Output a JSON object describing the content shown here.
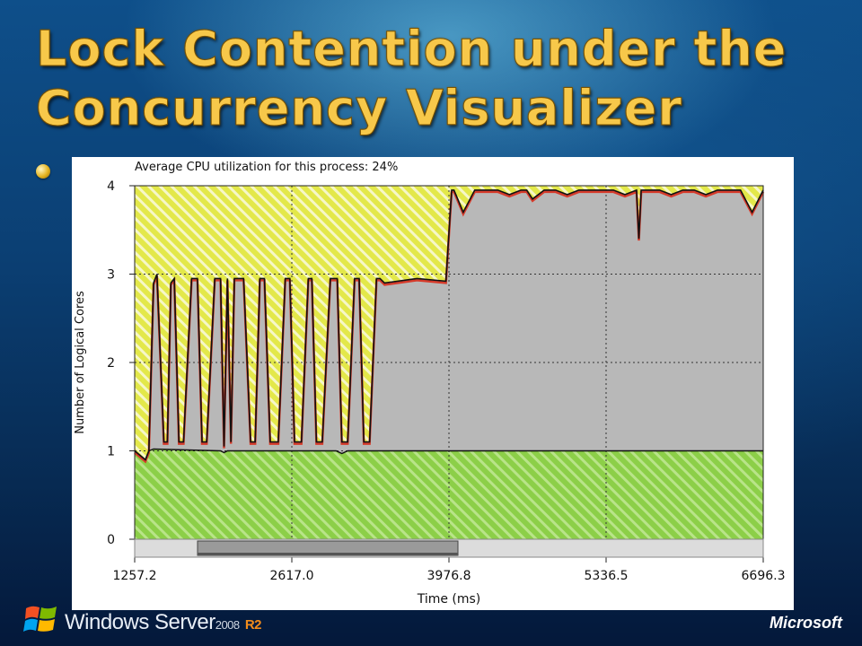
{
  "slide": {
    "title_line1": "Lock Contention under the",
    "title_line2": "Concurrency Visualizer"
  },
  "footer": {
    "brand": "Windows Server",
    "version": "2008",
    "release": "R2",
    "company": "Microsoft"
  },
  "chart_data": {
    "type": "area",
    "title": "Average CPU utilization for this process: 24%",
    "xlabel": "Time (ms)",
    "ylabel": "Number of Logical Cores",
    "xlim": [
      1257.2,
      6696.3
    ],
    "ylim": [
      0,
      4
    ],
    "x_ticks": [
      "1257.2",
      "2617.0",
      "3976.8",
      "5336.5",
      "6696.3"
    ],
    "y_ticks": [
      "0",
      "1",
      "2",
      "3",
      "4"
    ],
    "grid": true,
    "colors": {
      "idle": "#e6ea4a",
      "other_processes": "#b8b8b8",
      "system": "#8fd14f",
      "process": "#d63a2a",
      "outline": "#111111"
    },
    "series": [
      {
        "name": "",
        "x": [
          1257.2,
          1350,
          1380,
          1420,
          1450,
          1510,
          1540,
          1570,
          1600,
          1640,
          1680,
          1750,
          1800,
          1840,
          1880,
          1950,
          2000,
          2030,
          2060,
          2090,
          2120,
          2200,
          2260,
          2300,
          2340,
          2380,
          2430,
          2500,
          2560,
          2600,
          2640,
          2700,
          2760,
          2790,
          2830,
          2880,
          2950,
          3010,
          3050,
          3100,
          3160,
          3200,
          3240,
          3290,
          3350,
          3380,
          3420,
          3700,
          3950,
          4000,
          4020,
          4100,
          4200,
          4300,
          4400,
          4500,
          4600,
          4650,
          4700,
          4800,
          4900,
          5000,
          5100,
          5200,
          5300,
          5400,
          5500,
          5600,
          5620,
          5640,
          5700,
          5800,
          5900,
          6000,
          6100,
          6200,
          6300,
          6400,
          6500,
          6600,
          6696.3
        ],
        "values": [
          1.0,
          0.9,
          1.0,
          2.9,
          3.0,
          1.1,
          1.1,
          2.9,
          2.95,
          1.1,
          1.1,
          2.95,
          2.95,
          1.1,
          1.1,
          2.95,
          2.95,
          1.05,
          2.95,
          1.1,
          2.95,
          2.95,
          1.1,
          1.1,
          2.95,
          2.95,
          1.1,
          1.1,
          2.95,
          2.95,
          1.1,
          1.1,
          2.95,
          2.95,
          1.1,
          1.1,
          2.95,
          2.95,
          1.1,
          1.1,
          2.95,
          2.95,
          1.1,
          1.1,
          2.95,
          2.95,
          2.9,
          2.95,
          2.92,
          3.95,
          3.95,
          3.7,
          3.95,
          3.95,
          3.95,
          3.9,
          3.95,
          3.95,
          3.85,
          3.95,
          3.95,
          3.9,
          3.95,
          3.95,
          3.95,
          3.95,
          3.9,
          3.95,
          3.4,
          3.95,
          3.95,
          3.95,
          3.9,
          3.95,
          3.95,
          3.9,
          3.95,
          3.95,
          3.95,
          3.7,
          3.95
        ]
      },
      {
        "name": "",
        "x": [
          1257.2,
          1350,
          1380,
          1420,
          2000,
          2030,
          2060,
          3000,
          3050,
          3100,
          6696.3
        ],
        "values": [
          1.0,
          0.9,
          1.0,
          1.02,
          1.0,
          0.98,
          1.0,
          1.0,
          0.97,
          1.0,
          1.0
        ]
      }
    ],
    "legend": "none"
  }
}
